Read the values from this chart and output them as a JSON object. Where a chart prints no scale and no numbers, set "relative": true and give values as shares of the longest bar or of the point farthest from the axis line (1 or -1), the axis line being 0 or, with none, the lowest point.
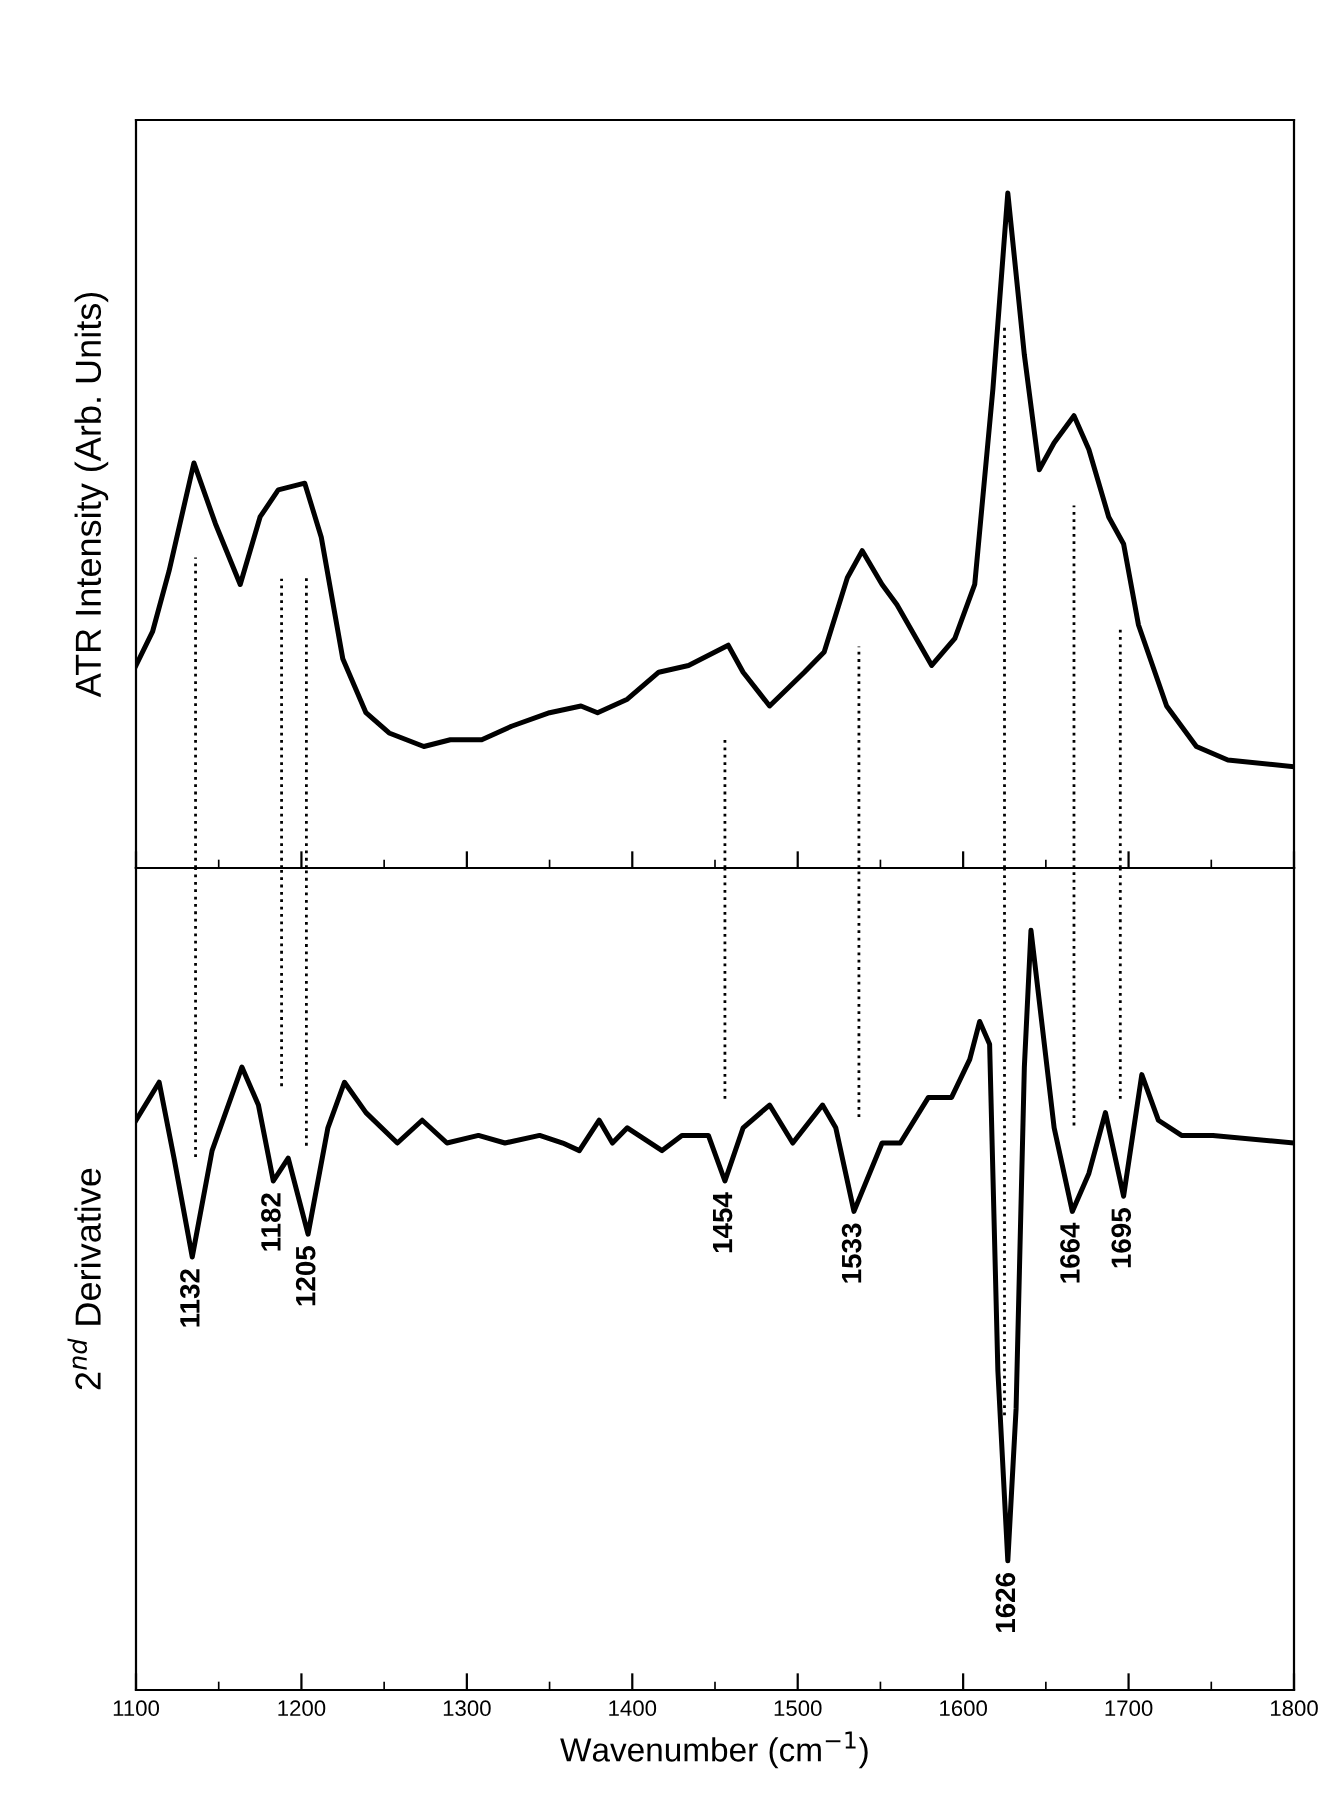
{
  "chart_data": [
    {
      "type": "line",
      "relative": true,
      "ylabel": "ATR Intensity (Arb. Units)",
      "tick_labels": false,
      "grid": false,
      "legend": false,
      "marker": "none",
      "line_style": "solid",
      "xlim": [
        1100,
        1800
      ],
      "xticks": [
        1100,
        {
          "value": 1150,
          "label": null
        },
        1200,
        {
          "value": 1250,
          "label": null
        },
        1300,
        {
          "value": 1350,
          "label": null
        },
        1400,
        {
          "value": 1450,
          "label": null
        },
        1500,
        {
          "value": 1550,
          "label": null
        },
        1600,
        {
          "value": 1650,
          "label": null
        },
        1700,
        {
          "value": 1750,
          "label": null
        },
        1800
      ],
      "series": [
        {
          "color": "#000000",
          "x": [
            1100,
            1110,
            1120,
            1135,
            1148,
            1163,
            1175,
            1186,
            1202,
            1212,
            1225,
            1239,
            1253,
            1274,
            1290,
            1309,
            1327,
            1350,
            1369,
            1379,
            1397,
            1416,
            1434,
            1458,
            1467,
            1483,
            1504,
            1516,
            1530,
            1539,
            1551,
            1560,
            1581,
            1595,
            1607,
            1618,
            1627,
            1637,
            1646,
            1655,
            1667,
            1676,
            1688,
            1697,
            1706,
            1723,
            1741,
            1760,
            1800
          ],
          "values": [
            0.3,
            0.35,
            0.44,
            0.6,
            0.51,
            0.42,
            0.52,
            0.56,
            0.57,
            0.49,
            0.31,
            0.23,
            0.2,
            0.18,
            0.19,
            0.19,
            0.21,
            0.23,
            0.24,
            0.23,
            0.25,
            0.29,
            0.3,
            0.33,
            0.29,
            0.24,
            0.29,
            0.32,
            0.43,
            0.47,
            0.42,
            0.39,
            0.3,
            0.34,
            0.42,
            0.71,
            1.0,
            0.76,
            0.59,
            0.63,
            0.67,
            0.62,
            0.52,
            0.48,
            0.36,
            0.24,
            0.18,
            0.16,
            0.15
          ]
        }
      ],
      "ref_lines": [
        {
          "axis": "x",
          "value": 1136,
          "line_style": "dotted",
          "color": "#000000"
        },
        {
          "axis": "x",
          "value": 1188,
          "line_style": "dotted",
          "color": "#000000"
        },
        {
          "axis": "x",
          "value": 1203,
          "line_style": "dotted",
          "color": "#000000"
        },
        {
          "axis": "x",
          "value": 1456,
          "line_style": "dotted",
          "color": "#000000"
        },
        {
          "axis": "x",
          "value": 1537,
          "line_style": "dotted",
          "color": "#000000"
        },
        {
          "axis": "x",
          "value": 1625,
          "line_style": "dotted",
          "color": "#000000"
        },
        {
          "axis": "x",
          "value": 1667,
          "line_style": "dotted",
          "color": "#000000"
        },
        {
          "axis": "x",
          "value": 1695,
          "line_style": "dotted",
          "color": "#000000"
        }
      ]
    },
    {
      "type": "line",
      "relative": true,
      "ylabel": "2$^{nd}$ Derivative",
      "xlabel": "Wavenumber (cm$^{−1}$)",
      "tick_labels": "x",
      "grid": false,
      "legend": false,
      "marker": "none",
      "line_style": "solid",
      "xlim": [
        1100,
        1800
      ],
      "xticks": [
        1100,
        {
          "value": 1150,
          "label": null
        },
        1200,
        {
          "value": 1250,
          "label": null
        },
        1300,
        {
          "value": 1350,
          "label": null
        },
        1400,
        {
          "value": 1450,
          "label": null
        },
        1500,
        {
          "value": 1550,
          "label": null
        },
        1600,
        {
          "value": 1650,
          "label": null
        },
        1700,
        {
          "value": 1750,
          "label": null
        },
        1800
      ],
      "series": [
        {
          "color": "#000000",
          "x": [
            1100,
            1114,
            1123,
            1134,
            1146,
            1164,
            1174,
            1183,
            1192,
            1204,
            1216,
            1226,
            1239,
            1258,
            1273,
            1288,
            1307,
            1323,
            1344,
            1358,
            1368,
            1380,
            1388,
            1397,
            1418,
            1430,
            1446,
            1456,
            1467,
            1483,
            1497,
            1515,
            1523,
            1534,
            1551,
            1562,
            1579,
            1593,
            1604,
            1610,
            1616,
            1621,
            1627,
            1632,
            1637,
            1641,
            1648,
            1655,
            1666,
            1676,
            1686,
            1697,
            1708,
            1718,
            1732,
            1751,
            1800
          ],
          "values": [
            0.75,
            0.8,
            0.7,
            0.57,
            0.71,
            0.82,
            0.77,
            0.67,
            0.7,
            0.6,
            0.74,
            0.8,
            0.76,
            0.72,
            0.75,
            0.72,
            0.73,
            0.72,
            0.73,
            0.72,
            0.71,
            0.75,
            0.72,
            0.74,
            0.71,
            0.73,
            0.73,
            0.67,
            0.74,
            0.77,
            0.72,
            0.77,
            0.74,
            0.63,
            0.72,
            0.72,
            0.78,
            0.78,
            0.83,
            0.88,
            0.85,
            0.42,
            0.17,
            0.37,
            0.82,
            1.0,
            0.87,
            0.74,
            0.63,
            0.68,
            0.76,
            0.65,
            0.81,
            0.75,
            0.73,
            0.73,
            0.72
          ]
        }
      ],
      "ref_lines": [
        {
          "axis": "x",
          "value": 1136,
          "line_style": "dotted",
          "color": "#000000"
        },
        {
          "axis": "x",
          "value": 1188,
          "line_style": "dotted",
          "color": "#000000"
        },
        {
          "axis": "x",
          "value": 1203,
          "line_style": "dotted",
          "color": "#000000"
        },
        {
          "axis": "x",
          "value": 1456,
          "line_style": "dotted",
          "color": "#000000"
        },
        {
          "axis": "x",
          "value": 1537,
          "line_style": "dotted",
          "color": "#000000"
        },
        {
          "axis": "x",
          "value": 1625,
          "line_style": "dotted",
          "color": "#000000"
        },
        {
          "axis": "x",
          "value": 1667,
          "line_style": "dotted",
          "color": "#000000"
        },
        {
          "axis": "x",
          "value": 1695,
          "line_style": "dotted",
          "color": "#000000"
        }
      ],
      "annotations": [
        {
          "text": "1132",
          "x": 1134,
          "y": 0.57
        },
        {
          "text": "1182",
          "x": 1183,
          "y": 0.67
        },
        {
          "text": "1205",
          "x": 1204,
          "y": 0.6
        },
        {
          "text": "1454",
          "x": 1456,
          "y": 0.67
        },
        {
          "text": "1533",
          "x": 1534,
          "y": 0.63
        },
        {
          "text": "1626",
          "x": 1627,
          "y": 0.17
        },
        {
          "text": "1664",
          "x": 1666,
          "y": 0.63
        },
        {
          "text": "1695",
          "x": 1697,
          "y": 0.65
        }
      ]
    }
  ]
}
